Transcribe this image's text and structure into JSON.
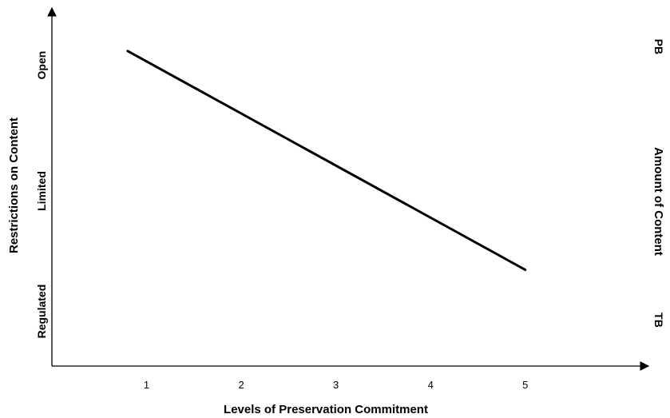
{
  "chart_data": {
    "type": "line",
    "xlabel": "Levels of Preservation Commitment",
    "ylabel": "Restrictions on Content",
    "y2label": "Amount of Content",
    "x_ticks": [
      "1",
      "2",
      "3",
      "4",
      "5"
    ],
    "y_categories": [
      "Regulated",
      "Limited",
      "Open"
    ],
    "y2_categories": [
      "TB",
      "PB"
    ],
    "series": [
      {
        "x": [
          0.8,
          5
        ],
        "y": [
          2.88,
          0.88
        ]
      }
    ],
    "xlim": [
      0,
      6.2
    ],
    "ylim": [
      0,
      3.2
    ],
    "grid": false,
    "legend": "none",
    "line_color": "#000000"
  }
}
